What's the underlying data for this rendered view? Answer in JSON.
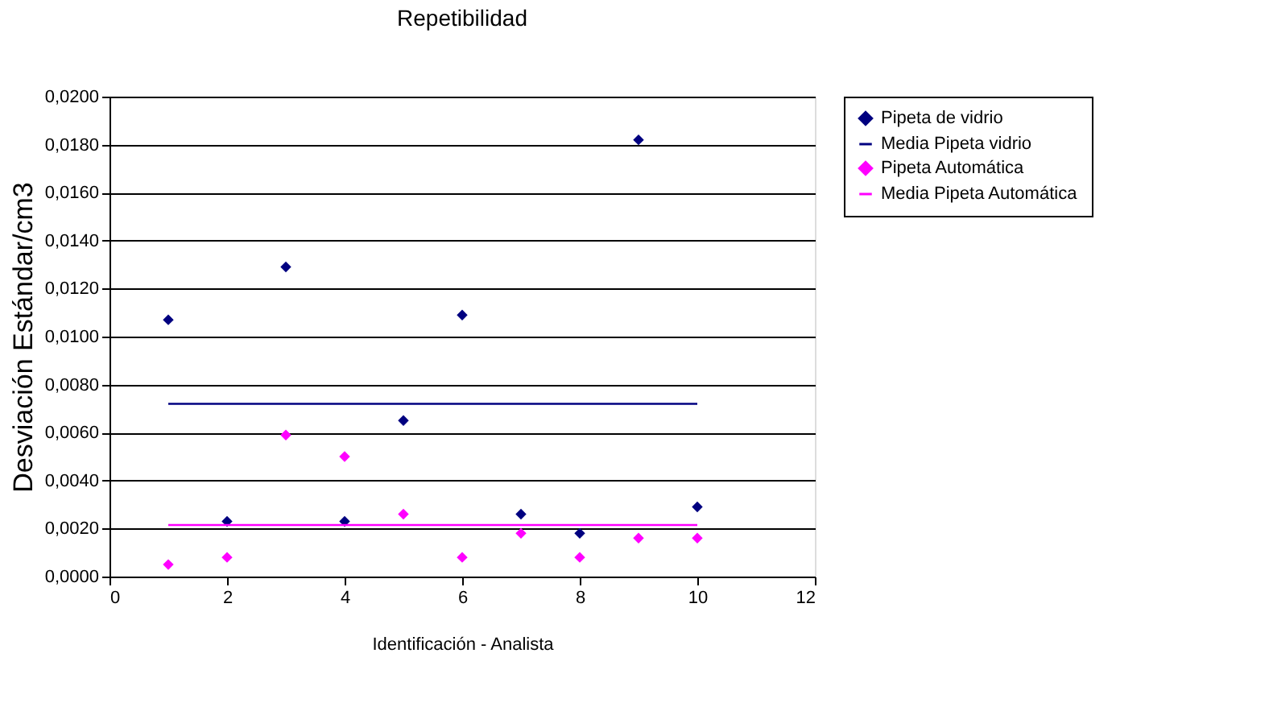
{
  "chart_data": {
    "type": "scatter",
    "title": "Repetibilidad",
    "xlabel": "Identificación - Analista",
    "ylabel": "Desviación Estándar/cm3",
    "xlim": [
      0,
      12
    ],
    "xticks": [
      0,
      2,
      4,
      6,
      8,
      10,
      12
    ],
    "ylim": [
      0,
      0.02
    ],
    "yticks": [
      {
        "value": 0,
        "label": "0,0000"
      },
      {
        "value": 0.002,
        "label": "0,0020"
      },
      {
        "value": 0.004,
        "label": "0,0040"
      },
      {
        "value": 0.006,
        "label": "0,0060"
      },
      {
        "value": 0.008,
        "label": "0,0080"
      },
      {
        "value": 0.01,
        "label": "0,0100"
      },
      {
        "value": 0.012,
        "label": "0,0120"
      },
      {
        "value": 0.014,
        "label": "0,0140"
      },
      {
        "value": 0.016,
        "label": "0,0160"
      },
      {
        "value": 0.018,
        "label": "0,0180"
      },
      {
        "value": 0.02,
        "label": "0,0200"
      }
    ],
    "grid": "y",
    "legend": "right",
    "marker": "diamond",
    "series": [
      {
        "name": "Pipeta de vidrio",
        "color": "#000080",
        "x": [
          1,
          2,
          3,
          4,
          5,
          6,
          7,
          8,
          9,
          10
        ],
        "values": [
          0.0107,
          0.0023,
          0.0129,
          0.0023,
          0.0065,
          0.0109,
          0.0026,
          0.0018,
          0.0182,
          0.0029
        ]
      },
      {
        "name": "Media Pipeta vidrio",
        "type": "line",
        "marker": "none",
        "color": "#000080",
        "x": [
          1,
          10
        ],
        "values": [
          0.0072,
          0.0072
        ]
      },
      {
        "name": "Pipeta Automática",
        "color": "#ff00ff",
        "x": [
          1,
          2,
          3,
          4,
          5,
          6,
          7,
          8,
          9,
          10
        ],
        "values": [
          0.0005,
          0.0008,
          0.0059,
          0.005,
          0.0026,
          0.0008,
          0.0018,
          0.0008,
          0.0016,
          0.0016
        ]
      },
      {
        "name": "Media Pipeta Automática",
        "type": "line",
        "marker": "none",
        "color": "#ff00ff",
        "x": [
          1,
          10
        ],
        "values": [
          0.00215,
          0.00215
        ]
      }
    ]
  }
}
